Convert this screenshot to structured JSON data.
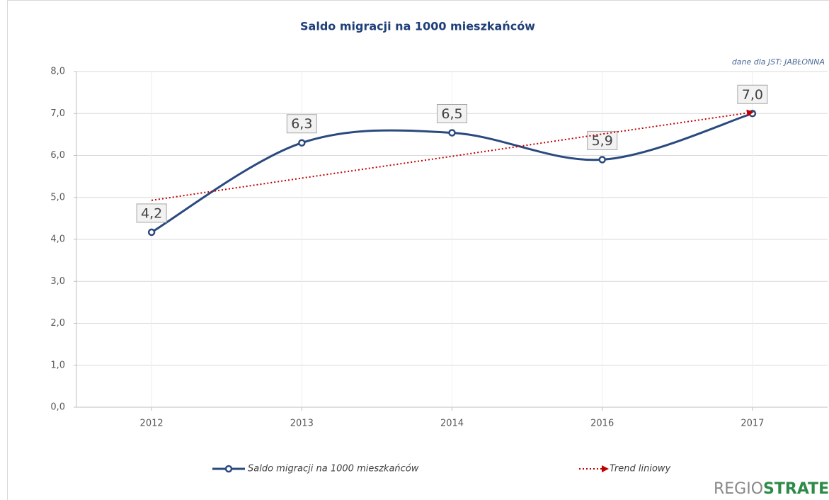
{
  "chart_data": {
    "type": "line",
    "title": "Saldo migracji na 1000 mieszkańców",
    "annotation": "dane dla JST: JABŁONNA",
    "categories": [
      "2012",
      "2013",
      "2014",
      "2016",
      "2017"
    ],
    "series": [
      {
        "name": "Saldo migracji na 1000 mieszkańców",
        "color": "#2a4a7f",
        "smooth": true,
        "marker": true,
        "values": [
          4.17,
          6.3,
          6.54,
          5.9,
          7.0
        ],
        "value_labels": [
          "4,2",
          "6,3",
          "6,5",
          "5,9",
          "7,0"
        ]
      },
      {
        "name": "Trend liniowy",
        "color": "#c00000",
        "dotted": true,
        "values": [
          4.93,
          5.46,
          5.98,
          6.51,
          7.03
        ]
      }
    ],
    "ylim": [
      0,
      8
    ],
    "yticks": [
      {
        "value": 0,
        "label": "0,0"
      },
      {
        "value": 1,
        "label": "1,0"
      },
      {
        "value": 2,
        "label": "2,0"
      },
      {
        "value": 3,
        "label": "3,0"
      },
      {
        "value": 4,
        "label": "4,0"
      },
      {
        "value": 5,
        "label": "5,0"
      },
      {
        "value": 6,
        "label": "6,0"
      },
      {
        "value": 7,
        "label": "7,0"
      },
      {
        "value": 8,
        "label": "8,0"
      }
    ],
    "grid": true,
    "legend": "bottom",
    "logo": {
      "light": "REGIO",
      "bold": "STRATEG",
      "mark": "TM"
    }
  }
}
